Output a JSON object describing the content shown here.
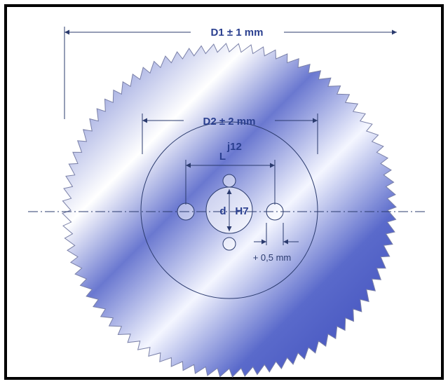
{
  "dimensions": {
    "d1": "D1 ± 1 mm",
    "d2": "D2 ± 2 mm",
    "l": "L",
    "l_tolerance": "j12",
    "d": "d",
    "d_tolerance": "H7",
    "offset": "+ 0,5 mm"
  }
}
